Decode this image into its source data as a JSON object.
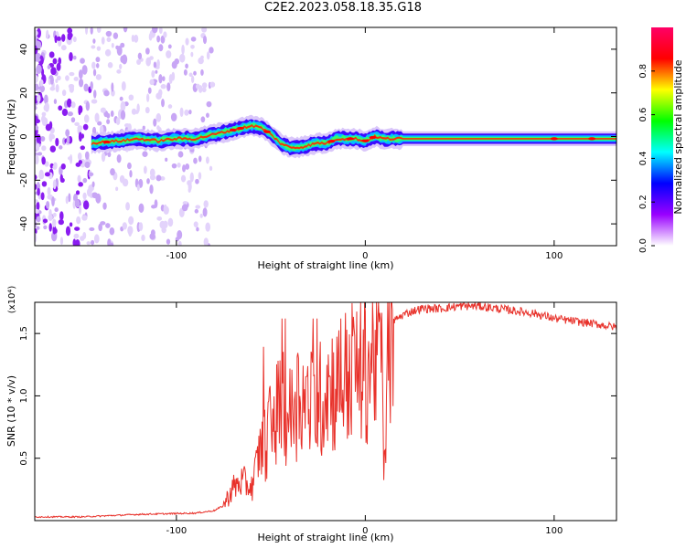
{
  "title": "C2E2.2023.058.18.35.G18",
  "chart_data": [
    {
      "type": "heatmap",
      "xlabel": "Height of straight line (km)",
      "ylabel": "Frequency (Hz)",
      "xlim": [
        -175,
        133
      ],
      "ylim": [
        -50,
        50
      ],
      "xticks": [
        -100,
        0,
        100
      ],
      "xtick_labels": [
        "-100",
        "0",
        "100"
      ],
      "yticks": [
        -40,
        -20,
        0,
        20,
        40
      ],
      "ytick_labels": [
        "-40",
        "-20",
        "0",
        "20",
        "40"
      ],
      "colorbar": {
        "label": "Normalized spectral amplitude",
        "range": [
          0,
          1
        ],
        "ticks": [
          0,
          0.2,
          0.4,
          0.6,
          0.8
        ],
        "tick_labels": [
          "0.0",
          "0.2",
          "0.4",
          "0.6",
          "0.8"
        ],
        "colors": [
          "#ffffff",
          "#9900ff",
          "#0000ff",
          "#00ffff",
          "#00ff00",
          "#ffff00",
          "#ff0000",
          "#ff0066"
        ]
      },
      "ridge": {
        "x": [
          -145,
          -130,
          -120,
          -110,
          -100,
          -90,
          -80,
          -70,
          -60,
          -55,
          -50,
          -45,
          -40,
          -35,
          -30,
          -25,
          -20,
          -15,
          -10,
          -5,
          0,
          5,
          10,
          20,
          40,
          60,
          80,
          100,
          120,
          133
        ],
        "frequency": [
          -3,
          -2,
          -1,
          -2,
          -1,
          -1,
          1,
          3,
          5,
          4,
          1,
          -3,
          -5,
          -5,
          -4,
          -3,
          -3,
          -1,
          -1,
          -1,
          -2,
          0,
          -1,
          -1,
          -1,
          -1,
          -1,
          -1,
          -1,
          -1
        ]
      }
    },
    {
      "type": "line",
      "xlabel": "Height of straight line (km)",
      "ylabel": "SNR (10 * v/v)",
      "scale_label": "(x10⁴)",
      "xlim": [
        -175,
        133
      ],
      "ylim": [
        0,
        1.75
      ],
      "xticks": [
        -100,
        0,
        100
      ],
      "xtick_labels": [
        "-100",
        "0",
        "100"
      ],
      "yticks": [
        0.5,
        1.0,
        1.5
      ],
      "ytick_labels": [
        "0.5",
        "1.0",
        "1.5"
      ],
      "color": "#e8312a",
      "series": [
        {
          "x": [
            -175,
            -150,
            -120,
            -90,
            -80,
            -75,
            -70,
            -65,
            -60,
            -55,
            -50,
            -45,
            -40,
            -35,
            -30,
            -25,
            -20,
            -15,
            -10,
            -5,
            0,
            5,
            8,
            10,
            12,
            15,
            20,
            25,
            30,
            40,
            50,
            60,
            70,
            80,
            90,
            100,
            110,
            120,
            133
          ],
          "y": [
            0.03,
            0.03,
            0.05,
            0.06,
            0.08,
            0.12,
            0.25,
            0.3,
            0.25,
            0.6,
            0.8,
            1.0,
            0.9,
            1.1,
            1.0,
            1.0,
            1.2,
            1.15,
            1.25,
            1.3,
            1.3,
            1.45,
            1.75,
            0.35,
            1.55,
            1.6,
            1.65,
            1.68,
            1.7,
            1.7,
            1.72,
            1.72,
            1.7,
            1.68,
            1.66,
            1.62,
            1.6,
            1.58,
            1.55
          ]
        }
      ]
    }
  ]
}
